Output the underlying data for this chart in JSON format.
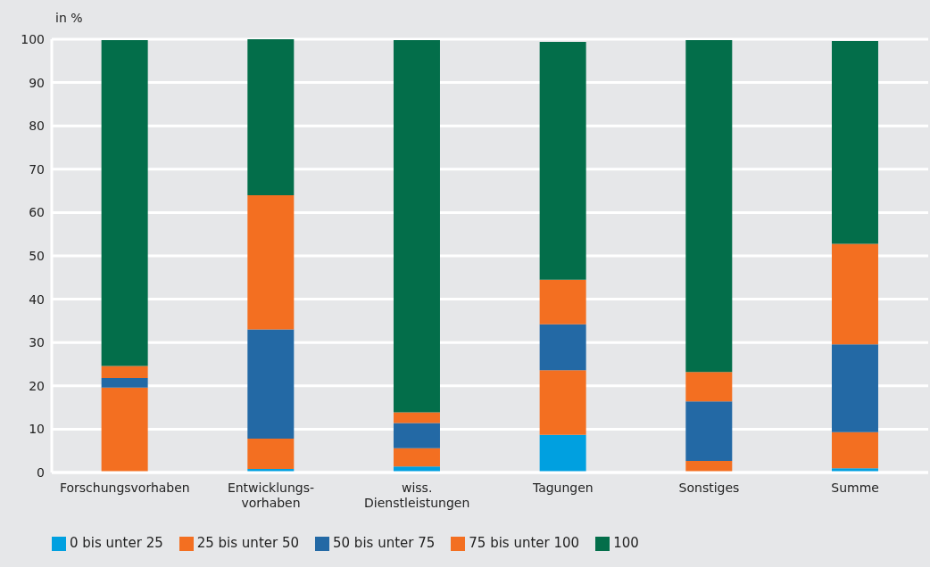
{
  "chart_data": {
    "type": "bar",
    "stacked": true,
    "ylabel": "in %",
    "categories": [
      "Forschungsvorhaben",
      "Entwicklungs-\nvorhaben",
      "wiss.\nDienstleistungen",
      "Tagungen",
      "Sonstiges",
      "Summe"
    ],
    "series": [
      {
        "name": "0 bis unter 25",
        "color": "#00a0e0",
        "values": [
          0,
          0.8,
          1.4,
          8.7,
          0,
          1.0
        ]
      },
      {
        "name": "25 bis unter 50",
        "color": "#f36f21",
        "values": [
          19.6,
          7.0,
          4.2,
          14.9,
          2.7,
          8.3
        ]
      },
      {
        "name": "50 bis unter 75",
        "color": "#2369a5",
        "values": [
          2.2,
          25.2,
          5.8,
          10.6,
          13.7,
          20.3
        ]
      },
      {
        "name": "75 bis unter 100",
        "color": "#f36f21",
        "values": [
          2.8,
          31.0,
          2.5,
          10.3,
          6.8,
          23.2
        ]
      },
      {
        "name": "100",
        "color": "#036e4a",
        "values": [
          75.2,
          36.0,
          85.9,
          54.9,
          76.6,
          46.8
        ]
      }
    ],
    "ylim": [
      0,
      100
    ],
    "yticks": [
      0,
      10,
      20,
      30,
      40,
      50,
      60,
      70,
      80,
      90,
      100
    ],
    "grid": "y",
    "legend": "bottom"
  }
}
